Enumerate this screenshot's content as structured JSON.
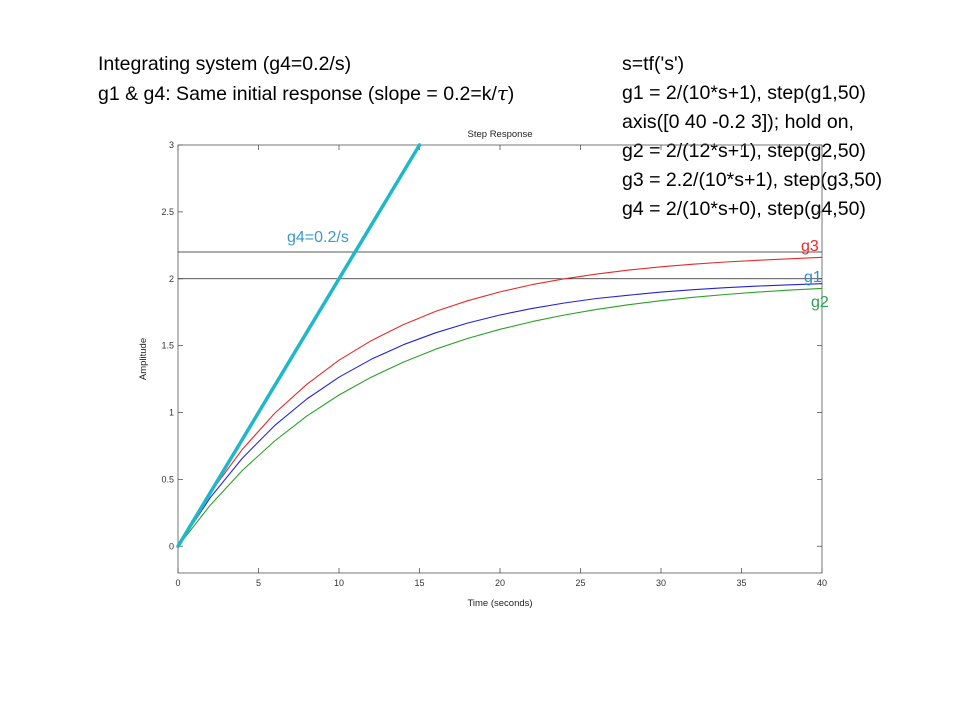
{
  "text": {
    "left": {
      "line1": "Integrating system (g4=0.2/s)",
      "line2_prefix": "g1 & g4: Same initial response (slope = 0.2=k/",
      "line2_symbol": "τ",
      "line2_suffix": ")"
    },
    "code": [
      "s=tf('s')",
      "g1 = 2/(10*s+1), step(g1,50)",
      "axis([0 40 -0.2 3]); hold on,",
      "g2 = 2/(12*s+1), step(g2,50)",
      "g3 = 2.2/(10*s+1), step(g3,50)",
      "g4 = 2/(10*s+0), step(g4,50)"
    ]
  },
  "chart_data": {
    "type": "line",
    "title": "Step Response",
    "xlabel": "Time (seconds)",
    "ylabel": "Amplitude",
    "xlim": [
      0,
      40
    ],
    "ylim": [
      -0.2,
      3
    ],
    "xticks": [
      0,
      5,
      10,
      15,
      20,
      25,
      30,
      35,
      40
    ],
    "xtick_labels": [
      "0",
      "5",
      "10",
      "15",
      "20",
      "25",
      "30",
      "35",
      "40"
    ],
    "yticks": [
      0,
      0.5,
      1,
      1.5,
      2,
      2.5,
      3
    ],
    "ytick_labels": [
      "0",
      "0.5",
      "1",
      "1.5",
      "2",
      "2.5",
      "3"
    ],
    "reference_lines": [
      2.2,
      2.0
    ],
    "series": [
      {
        "name": "g3",
        "color": "#e52b2b",
        "x": [
          0,
          2,
          4,
          6,
          8,
          10,
          12,
          14,
          16,
          18,
          20,
          22,
          24,
          26,
          28,
          30,
          32,
          34,
          36,
          38,
          40
        ],
        "y": [
          0,
          0.399,
          0.725,
          0.993,
          1.211,
          1.391,
          1.537,
          1.657,
          1.756,
          1.836,
          1.902,
          1.956,
          2.0,
          2.035,
          2.065,
          2.089,
          2.109,
          2.125,
          2.138,
          2.149,
          2.16
        ]
      },
      {
        "name": "g1",
        "color": "#2424d6",
        "x": [
          0,
          2,
          4,
          6,
          8,
          10,
          12,
          14,
          16,
          18,
          20,
          22,
          24,
          26,
          28,
          30,
          32,
          34,
          36,
          38,
          40
        ],
        "y": [
          0,
          0.363,
          0.659,
          0.902,
          1.101,
          1.264,
          1.398,
          1.507,
          1.596,
          1.669,
          1.729,
          1.778,
          1.819,
          1.852,
          1.877,
          1.9,
          1.918,
          1.933,
          1.945,
          1.955,
          1.963
        ]
      },
      {
        "name": "g2",
        "color": "#2aa02a",
        "x": [
          0,
          2,
          4,
          6,
          8,
          10,
          12,
          14,
          16,
          18,
          20,
          22,
          24,
          26,
          28,
          30,
          32,
          34,
          36,
          38,
          40
        ],
        "y": [
          0,
          0.307,
          0.567,
          0.787,
          0.973,
          1.131,
          1.264,
          1.377,
          1.473,
          1.554,
          1.622,
          1.68,
          1.729,
          1.771,
          1.806,
          1.836,
          1.861,
          1.882,
          1.9,
          1.915,
          1.928
        ]
      },
      {
        "name": "g4=0.2/s",
        "color": "#1fb8c8",
        "x": [
          0,
          15
        ],
        "y": [
          0,
          3
        ]
      }
    ],
    "grid": false,
    "legend": "none",
    "annotations": {
      "g3": {
        "text": "g3",
        "color": "#e52b2b"
      },
      "g1": {
        "text": "g1",
        "color": "#2a8fd6"
      },
      "g2": {
        "text": "g2",
        "color": "#2aa050"
      },
      "g4": {
        "text": "g4=0.2/s",
        "color": "#3a9ac9"
      }
    }
  }
}
